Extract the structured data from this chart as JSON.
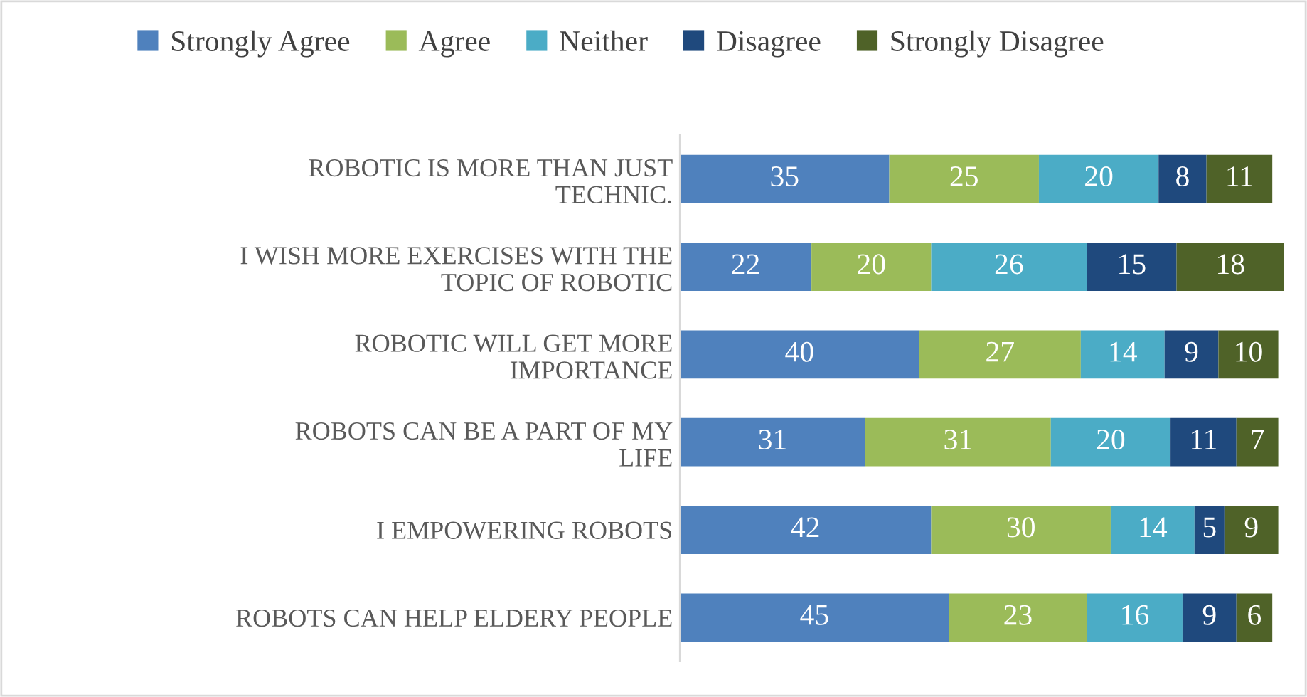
{
  "chart_data": {
    "type": "bar",
    "orientation": "horizontal",
    "stacked": true,
    "data_labels": true,
    "tick_labels": "y",
    "legend": "top",
    "grid": false,
    "xlim": [
      0,
      101
    ],
    "categories": [
      "ROBOTIC IS MORE THAN JUST TECHNIC.",
      "I WISH MORE EXERCISES WITH THE TOPIC OF ROBOTIC",
      "ROBOTIC WILL GET MORE IMPORTANCE",
      "ROBOTS CAN BE A PART OF MY LIFE",
      "I EMPOWERING ROBOTS",
      "ROBOTS CAN HELP ELDERY PEOPLE"
    ],
    "series": [
      {
        "name": "Strongly Agree",
        "color": "#4f81bd",
        "values": [
          35,
          22,
          40,
          31,
          42,
          45
        ]
      },
      {
        "name": "Agree",
        "color": "#9bbb59",
        "values": [
          25,
          20,
          27,
          31,
          30,
          23
        ]
      },
      {
        "name": "Neither",
        "color": "#4bacc6",
        "values": [
          20,
          26,
          14,
          20,
          14,
          16
        ]
      },
      {
        "name": "Disagree",
        "color": "#1f497d",
        "values": [
          8,
          15,
          9,
          11,
          5,
          9
        ]
      },
      {
        "name": "Strongly Disagree",
        "color": "#4f6228",
        "values": [
          11,
          18,
          10,
          7,
          9,
          6
        ]
      }
    ]
  }
}
